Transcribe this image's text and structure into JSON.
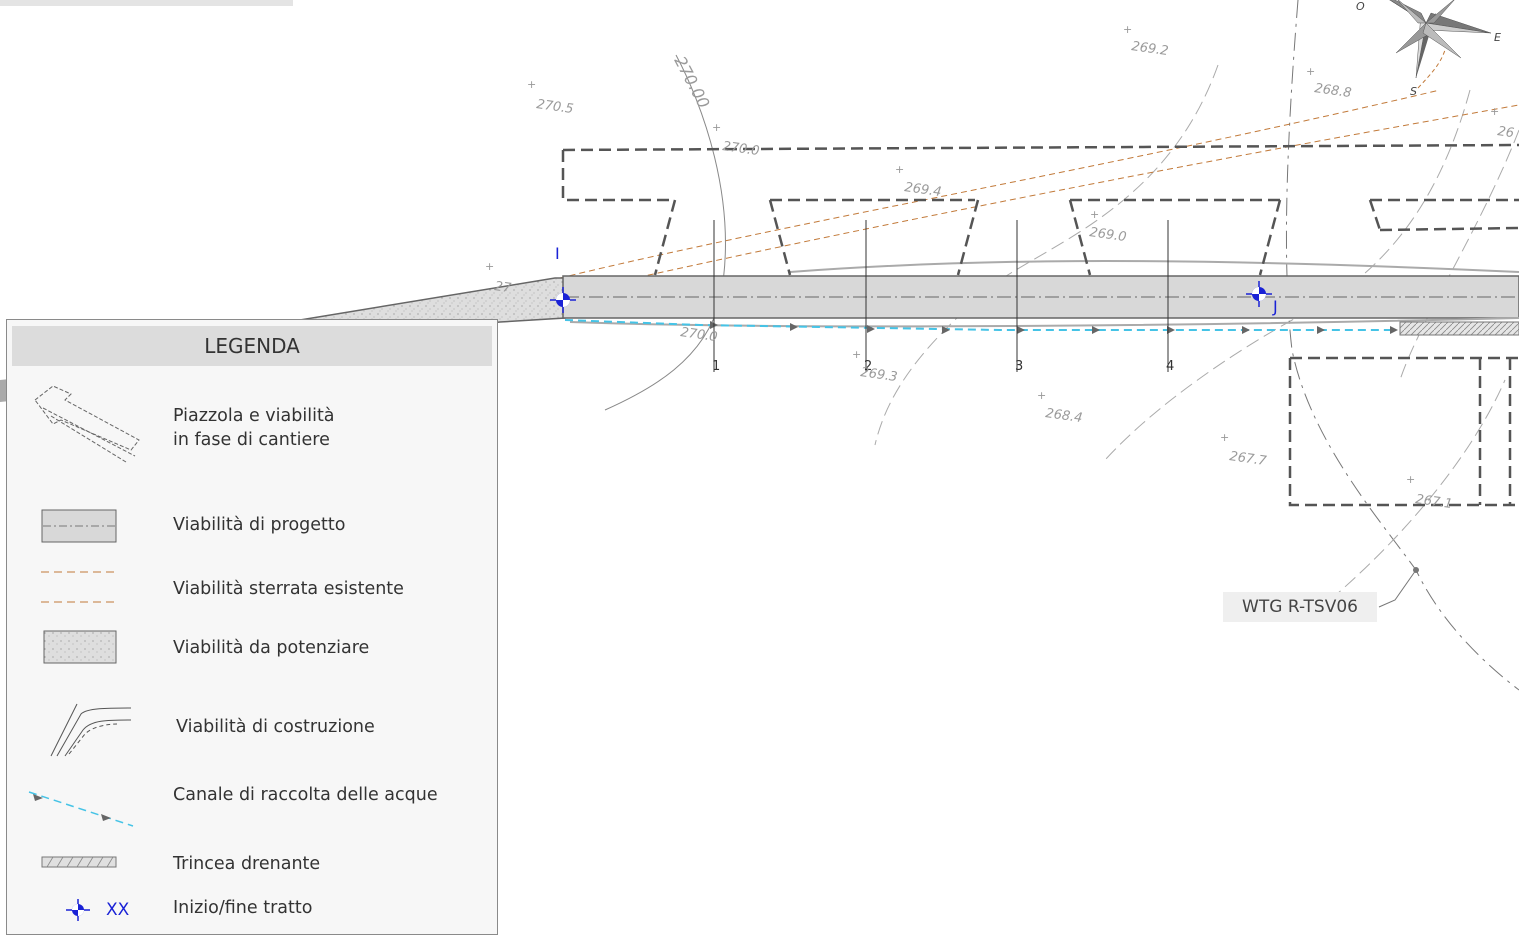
{
  "legend": {
    "title": "LEGENDA",
    "items": [
      {
        "key": "piazzola",
        "label": "Piazzola e viabilità\nin fase di cantiere",
        "icon": "crane-pad-outline-icon"
      },
      {
        "key": "progetto",
        "label": "Viabilità di progetto",
        "icon": "project-road-icon"
      },
      {
        "key": "sterrata",
        "label": "Viabilità sterrata esistente",
        "icon": "dirt-road-icon"
      },
      {
        "key": "potenziare",
        "label": "Viabilità da potenziare",
        "icon": "upgrade-road-icon"
      },
      {
        "key": "costruzione",
        "label": "Viabilità di costruzione",
        "icon": "construction-road-icon"
      },
      {
        "key": "canale",
        "label": "Canale di raccolta delle acque",
        "icon": "water-channel-icon"
      },
      {
        "key": "trincea",
        "label": "Trincea drenante",
        "icon": "drain-trench-icon"
      },
      {
        "key": "inizio",
        "label": "Inizio/fine tratto",
        "icon": "start-end-marker-icon",
        "symbol_text": "XX"
      }
    ]
  },
  "map": {
    "point_labels": {
      "start": "I",
      "end": "J"
    },
    "section_labels": [
      "1",
      "2",
      "3",
      "4"
    ],
    "contour_label": "270.00",
    "spot_heights": [
      "270.5",
      "269.2",
      "268.8",
      "270.0",
      "269.4",
      "269.0",
      "269.3",
      "268.4",
      "267.7",
      "267.1",
      "270.0",
      "27",
      "26"
    ],
    "turbine_label": "WTG R-TSV06",
    "compass": {
      "west": "O",
      "east": "E",
      "south": "S"
    }
  },
  "colors": {
    "road_fill": "#d8d8d8",
    "dirt_road": "#c27a3a",
    "water_channel": "#45c3e6",
    "marker": "#1a22d6",
    "dashed_outline": "#555555"
  }
}
